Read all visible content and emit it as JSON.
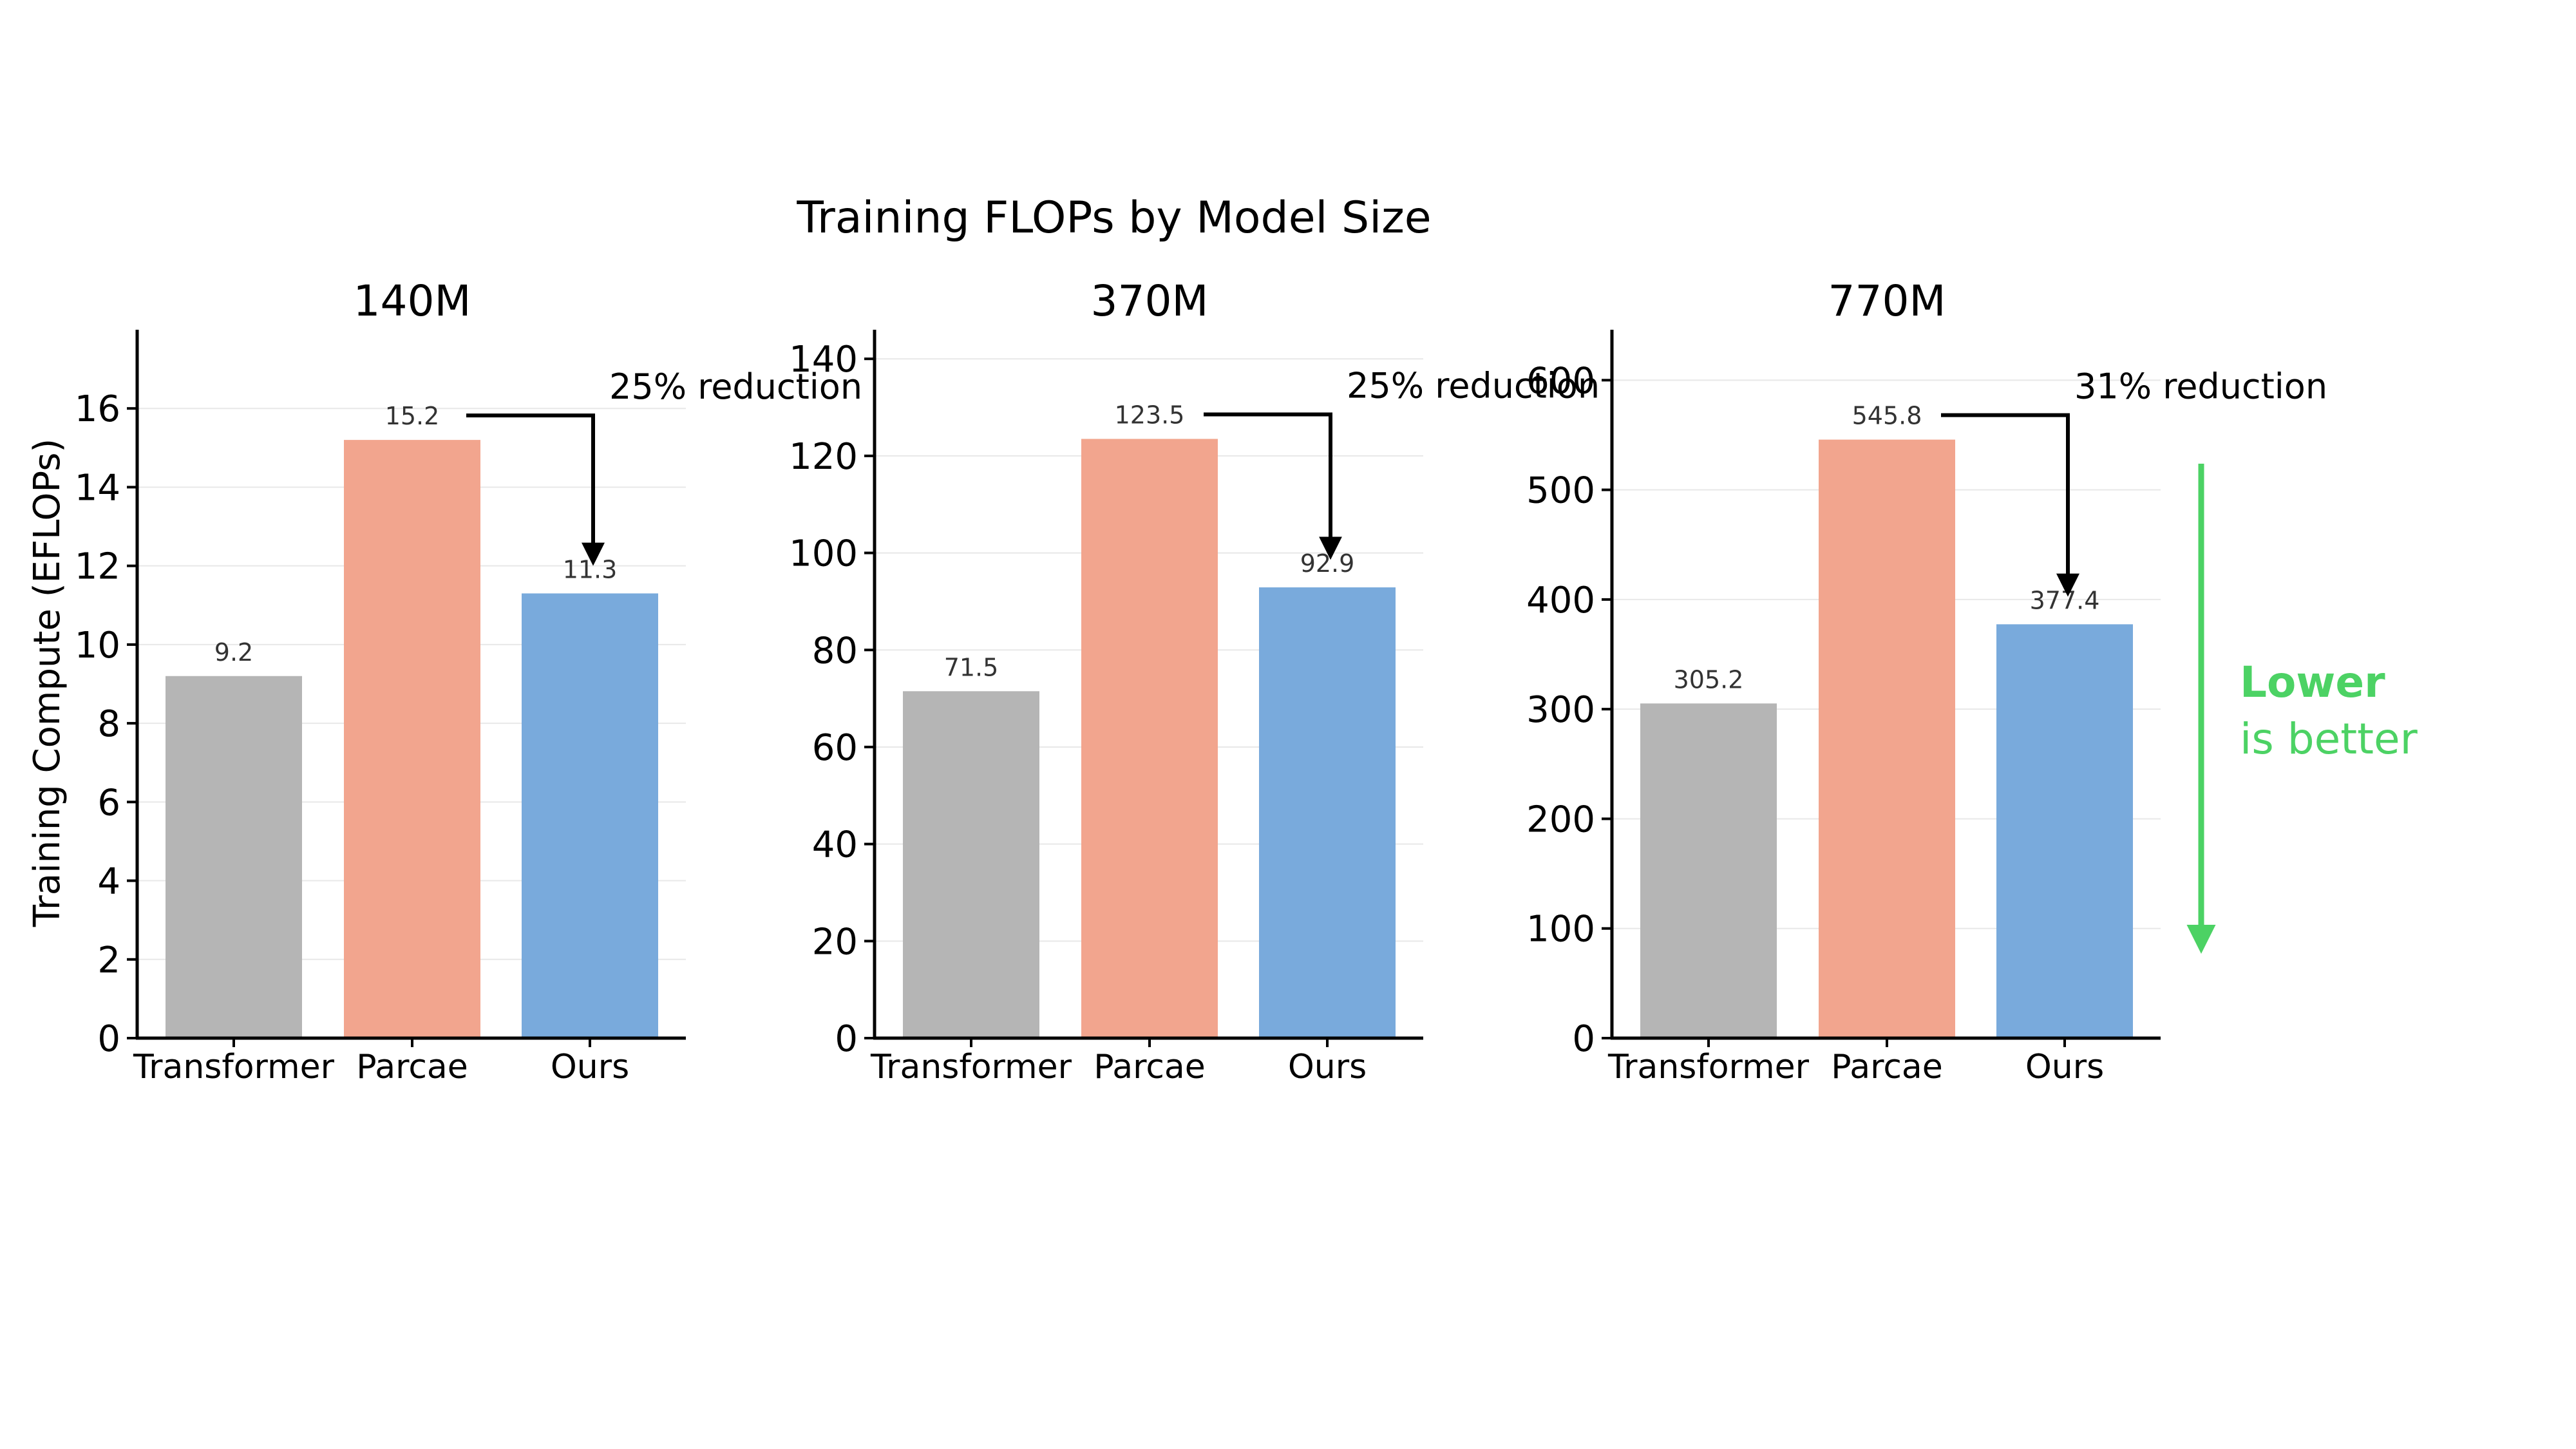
{
  "suptitle": "Training FLOPs by Model Size",
  "ylabel": "Training Compute  (EFLOPs)",
  "note": {
    "line1": "Lower",
    "line2": "is better",
    "color": "#4cd264"
  },
  "colors": {
    "Transformer": "#b5b5b5",
    "Parcae": "#f2a58e",
    "Ours": "#79aadc"
  },
  "chart_data": [
    {
      "type": "bar",
      "title": "140M",
      "categories": [
        "Transformer",
        "Parcae",
        "Ours"
      ],
      "values": [
        9.2,
        15.2,
        11.3
      ],
      "value_labels": [
        "9.2",
        "15.2",
        "11.3"
      ],
      "ylim": [
        0,
        18
      ],
      "yticks": [
        0,
        2,
        4,
        6,
        8,
        10,
        12,
        14,
        16
      ],
      "grid": true,
      "annotation": "25% reduction"
    },
    {
      "type": "bar",
      "title": "370M",
      "categories": [
        "Transformer",
        "Parcae",
        "Ours"
      ],
      "values": [
        71.5,
        123.5,
        92.9
      ],
      "value_labels": [
        "71.5",
        "123.5",
        "92.9"
      ],
      "ylim": [
        0,
        146
      ],
      "yticks": [
        0,
        20,
        40,
        60,
        80,
        100,
        120,
        140
      ],
      "grid": true,
      "annotation": "25% reduction"
    },
    {
      "type": "bar",
      "title": "770M",
      "categories": [
        "Transformer",
        "Parcae",
        "Ours"
      ],
      "values": [
        305.2,
        545.8,
        377.4
      ],
      "value_labels": [
        "305.2",
        "545.8",
        "377.4"
      ],
      "ylim": [
        0,
        646
      ],
      "yticks": [
        0,
        100,
        200,
        300,
        400,
        500,
        600
      ],
      "grid": true,
      "annotation": "31% reduction"
    }
  ]
}
